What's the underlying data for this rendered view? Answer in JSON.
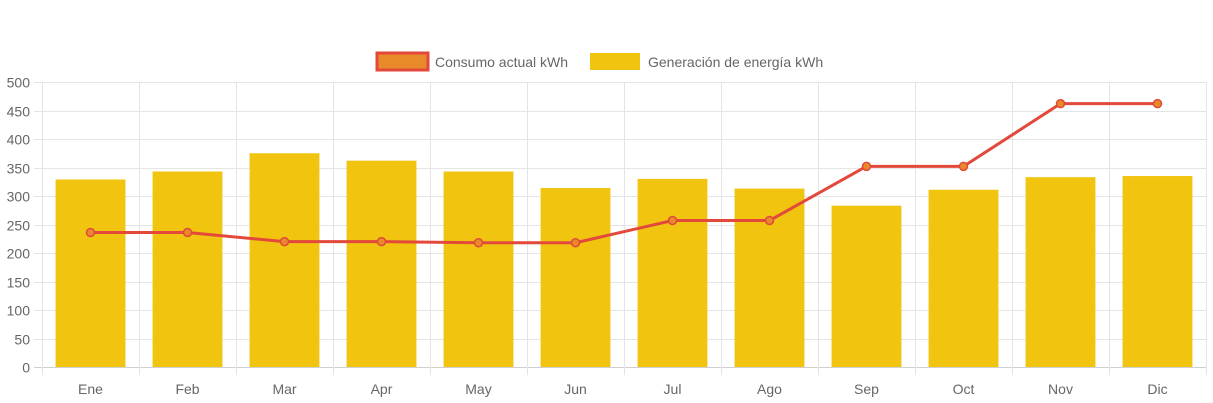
{
  "chart_data": {
    "type": "bar",
    "categories": [
      "Ene",
      "Feb",
      "Mar",
      "Apr",
      "May",
      "Jun",
      "Jul",
      "Ago",
      "Sep",
      "Oct",
      "Nov",
      "Dic"
    ],
    "series": [
      {
        "name": "Consumo actual kWh",
        "type": "line",
        "color": "#e2493a",
        "point_color": "#e8892a",
        "values": [
          236,
          236,
          220,
          220,
          218,
          218,
          257,
          257,
          352,
          352,
          462,
          462
        ]
      },
      {
        "name": "Generación de energía kWh",
        "type": "bar",
        "color": "#f1c40f",
        "values": [
          329,
          343,
          375,
          362,
          343,
          314,
          330,
          313,
          283,
          311,
          333,
          335
        ]
      }
    ],
    "yticks": [
      0,
      50,
      100,
      150,
      200,
      250,
      300,
      350,
      400,
      450,
      500
    ],
    "ylim": [
      0,
      500
    ],
    "title": "",
    "xlabel": "",
    "ylabel": "",
    "grid": true,
    "legend_position": "top-center"
  },
  "legend": {
    "items": [
      {
        "label": "Consumo actual kWh",
        "fill": "#e8892a",
        "stroke": "#e2493a"
      },
      {
        "label": "Generación de energía kWh",
        "fill": "#f1c40f",
        "stroke": "#f1c40f"
      }
    ]
  }
}
